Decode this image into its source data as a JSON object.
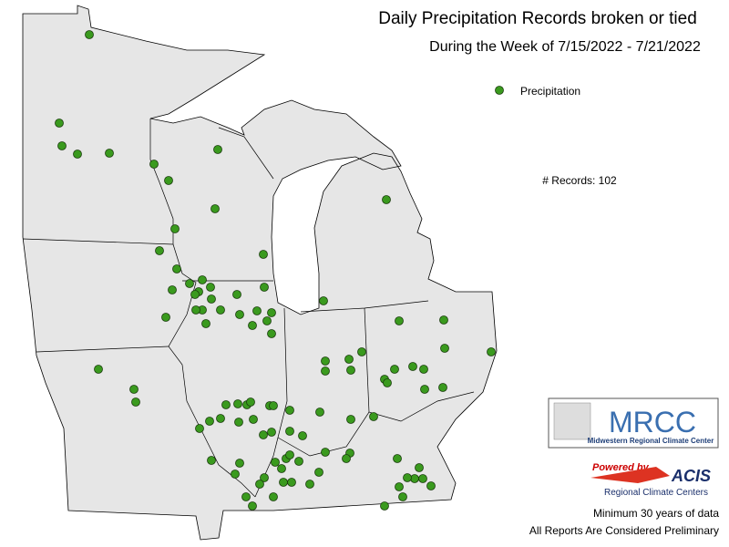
{
  "header": {
    "title": "Daily Precipitation Records broken or tied",
    "subtitle": "During the Week of 7/15/2022 - 7/21/2022"
  },
  "legend": {
    "label": "Precipitation"
  },
  "records": "# Records: 102",
  "logo": {
    "name": "MRCC",
    "full_name": "Midwestern Regional Climate Center",
    "powered_by": "Powered by",
    "acis": "ACIS",
    "acis_full": "Regional Climate Centers"
  },
  "notes": [
    "Minimum 30 years of data",
    "All Reports Are Considered Preliminary"
  ]
}
